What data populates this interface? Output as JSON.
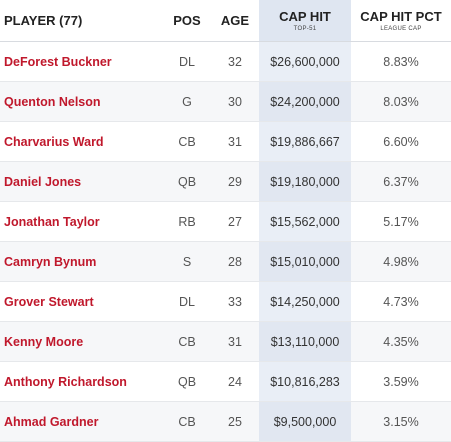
{
  "table": {
    "header": [
      {
        "label": "PLAYER (77)"
      },
      {
        "label": "POS"
      },
      {
        "label": "AGE"
      },
      {
        "label": "CAP HIT",
        "sub": "TOP-51"
      },
      {
        "label": "CAP HIT PCT",
        "sub": "LEAGUE CAP"
      }
    ],
    "rows": [
      [
        "DeForest Buckner",
        "DL",
        "32",
        "$26,600,000",
        "8.83%"
      ],
      [
        "Quenton Nelson",
        "G",
        "30",
        "$24,200,000",
        "8.03%"
      ],
      [
        "Charvarius Ward",
        "CB",
        "31",
        "$19,886,667",
        "6.60%"
      ],
      [
        "Daniel Jones",
        "QB",
        "29",
        "$19,180,000",
        "6.37%"
      ],
      [
        "Jonathan Taylor",
        "RB",
        "27",
        "$15,562,000",
        "5.17%"
      ],
      [
        "Camryn Bynum",
        "S",
        "28",
        "$15,010,000",
        "4.98%"
      ],
      [
        "Grover Stewart",
        "DL",
        "33",
        "$14,250,000",
        "4.73%"
      ],
      [
        "Kenny Moore",
        "CB",
        "31",
        "$13,110,000",
        "4.35%"
      ],
      [
        "Anthony Richardson",
        "QB",
        "24",
        "$10,816,283",
        "3.59%"
      ],
      [
        "Ahmad Gardner",
        "CB",
        "25",
        "$9,500,000",
        "3.15%"
      ]
    ]
  }
}
